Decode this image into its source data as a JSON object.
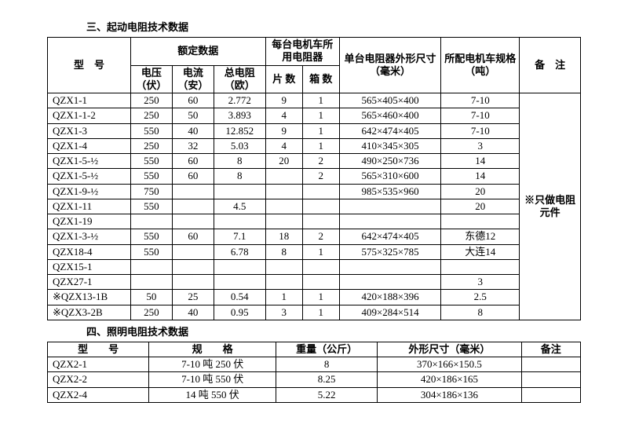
{
  "section3": {
    "title": "三、起动电阻技术数据",
    "headers": {
      "model": "型　号",
      "rated": "额定数据",
      "perLoco": "每台电机车所用电阻器",
      "dims": "单台电阻器外形尺寸（毫米）",
      "locoSpec": "所配电机车规格（吨）",
      "remark": "备　注",
      "voltage": "电压（伏）",
      "current": "电流（安）",
      "totalR": "总电阻（欧）",
      "plates": "片 数",
      "boxes": "箱 数"
    },
    "note": "※只做电阻元件",
    "rows": [
      {
        "m": "QZX1-1",
        "v": "250",
        "i": "60",
        "r": "2.772",
        "p": "9",
        "b": "1",
        "d": "565×405×400",
        "s": "7-10"
      },
      {
        "m": "QZX1-1-2",
        "v": "250",
        "i": "50",
        "r": "3.893",
        "p": "4",
        "b": "1",
        "d": "565×460×400",
        "s": "7-10"
      },
      {
        "m": "QZX1-3",
        "v": "550",
        "i": "40",
        "r": "12.852",
        "p": "9",
        "b": "1",
        "d": "642×474×405",
        "s": "7-10"
      },
      {
        "m": "QZX1-4",
        "v": "250",
        "i": "32",
        "r": "5.03",
        "p": "4",
        "b": "1",
        "d": "410×345×305",
        "s": "3"
      },
      {
        "m": "QZX1-5-½",
        "v": "550",
        "i": "60",
        "r": "8",
        "p": "20",
        "b": "2",
        "d": "490×250×736",
        "s": "14"
      },
      {
        "m": "QZX1-5-½",
        "v": "550",
        "i": "60",
        "r": "8",
        "p": "",
        "b": "2",
        "d": "565×310×600",
        "s": "14"
      },
      {
        "m": "QZX1-9-½",
        "v": "750",
        "i": "",
        "r": "",
        "p": "",
        "b": "",
        "d": "985×535×960",
        "s": "20"
      },
      {
        "m": "QZX1-11",
        "v": "550",
        "i": "",
        "r": "4.5",
        "p": "",
        "b": "",
        "d": "",
        "s": "20"
      },
      {
        "m": "QZX1-19",
        "v": "",
        "i": "",
        "r": "",
        "p": "",
        "b": "",
        "d": "",
        "s": ""
      },
      {
        "m": "QZX1-3-½",
        "v": "550",
        "i": "60",
        "r": "7.1",
        "p": "18",
        "b": "2",
        "d": "642×474×405",
        "s": "东德12"
      },
      {
        "m": "QZX18-4",
        "v": "550",
        "i": "",
        "r": "6.78",
        "p": "8",
        "b": "1",
        "d": "575×325×785",
        "s": "大连14"
      },
      {
        "m": "QZX15-1",
        "v": "",
        "i": "",
        "r": "",
        "p": "",
        "b": "",
        "d": "",
        "s": ""
      },
      {
        "m": "QZX27-1",
        "v": "",
        "i": "",
        "r": "",
        "p": "",
        "b": "",
        "d": "",
        "s": "3"
      },
      {
        "m": "※QZX13-1B",
        "v": "50",
        "i": "25",
        "r": "0.54",
        "p": "1",
        "b": "1",
        "d": "420×188×396",
        "s": "2.5"
      },
      {
        "m": "※QZX3-2B",
        "v": "250",
        "i": "40",
        "r": "0.95",
        "p": "3",
        "b": "1",
        "d": "409×284×514",
        "s": "8"
      }
    ]
  },
  "section4": {
    "title": "四、照明电阻技术数据",
    "headers": {
      "model": "型　　号",
      "spec": "规　　格",
      "weight": "重量（公斤）",
      "dims": "外形尺寸（毫米）",
      "remark": "备注"
    },
    "rows": [
      {
        "m": "QZX2-1",
        "sp": "7-10 吨 250 伏",
        "w": "8",
        "d": "370×166×150.5"
      },
      {
        "m": "QZX2-2",
        "sp": "7-10 吨 550 伏",
        "w": "8.25",
        "d": "420×186×165"
      },
      {
        "m": "QZX2-4",
        "sp": "14 吨 550 伏",
        "w": "5.22",
        "d": "304×186×136"
      }
    ]
  }
}
